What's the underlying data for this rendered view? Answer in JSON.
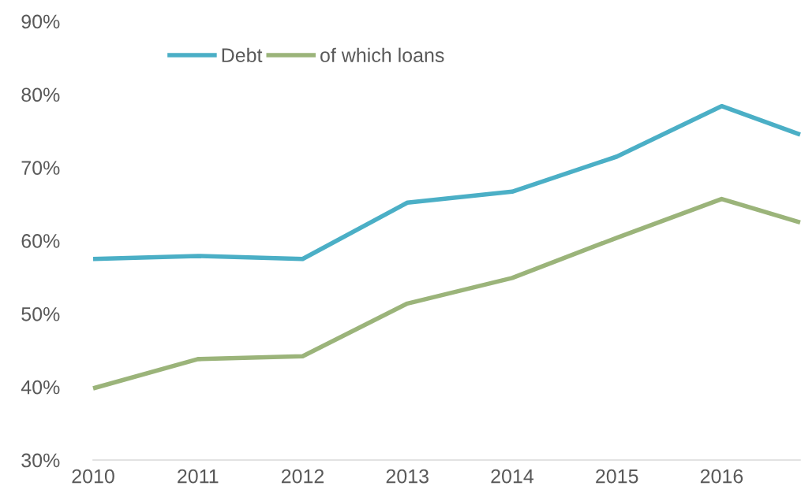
{
  "chart_data": {
    "type": "line",
    "x": [
      2010,
      2011,
      2012,
      2013,
      2014,
      2015,
      2016,
      2016.75
    ],
    "series": [
      {
        "name": "Debt",
        "color": "#4bafc6",
        "values": [
          57.5,
          57.9,
          57.5,
          65.2,
          66.7,
          71.5,
          78.4,
          74.5
        ]
      },
      {
        "name": "of which loans",
        "color": "#9bb47a",
        "values": [
          39.8,
          43.8,
          44.2,
          51.4,
          54.9,
          60.4,
          65.7,
          62.5
        ]
      }
    ],
    "xlim": [
      2010,
      2016.75
    ],
    "xticks": [
      2010,
      2011,
      2012,
      2013,
      2014,
      2015,
      2016
    ],
    "ylim": [
      30,
      90
    ],
    "yticks": [
      {
        "value": 30,
        "label": "30%"
      },
      {
        "value": 40,
        "label": "40%"
      },
      {
        "value": 50,
        "label": "50%"
      },
      {
        "value": 60,
        "label": "60%"
      },
      {
        "value": 70,
        "label": "70%"
      },
      {
        "value": 80,
        "label": "80%"
      },
      {
        "value": 90,
        "label": "90%"
      }
    ],
    "grid": false,
    "legend": "top left",
    "marker": "none",
    "line_style": "solid"
  }
}
